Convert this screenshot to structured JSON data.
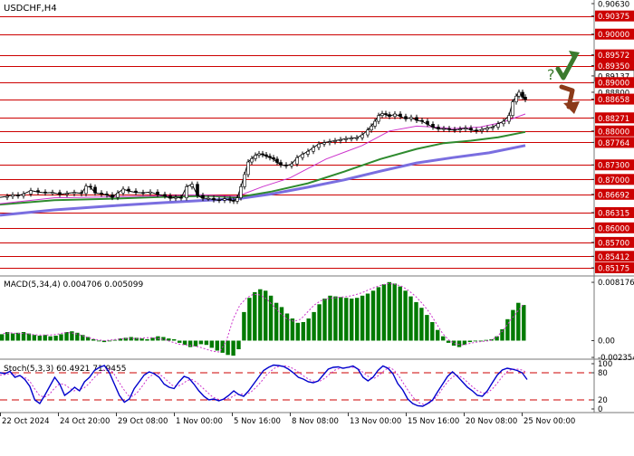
{
  "chart_data": [
    {
      "type": "candlestick",
      "title": "USDCHF,H4",
      "y_axis_labels": [
        "0.90630",
        "0.90375",
        "0.90000",
        "0.89572",
        "0.89350",
        "0.89137",
        "0.89000",
        "0.88800",
        "0.88658",
        "0.88271",
        "0.88000",
        "0.87764",
        "0.87300",
        "0.87000",
        "0.86692",
        "0.86315",
        "0.86000",
        "0.85700",
        "0.85412",
        "0.85175"
      ],
      "highlighted_levels": [
        0.90375,
        0.9,
        0.89572,
        0.8935,
        0.89,
        0.88658,
        0.88271,
        0.88,
        0.87764,
        0.873,
        0.87,
        0.86692,
        0.86315,
        0.86,
        0.857,
        0.85412,
        0.85175
      ],
      "current_price": 0.89137,
      "ylim": [
        0.851,
        0.9063
      ],
      "close_path": [
        [
          0,
          0.8663
        ],
        [
          8,
          0.8665
        ],
        [
          14,
          0.8668
        ],
        [
          20,
          0.8666
        ],
        [
          26,
          0.867
        ],
        [
          34,
          0.8677
        ],
        [
          42,
          0.8674
        ],
        [
          50,
          0.8672
        ],
        [
          58,
          0.8673
        ],
        [
          66,
          0.8669
        ],
        [
          74,
          0.8671
        ],
        [
          82,
          0.8673
        ],
        [
          90,
          0.8671
        ],
        [
          95,
          0.8686
        ],
        [
          100,
          0.8684
        ],
        [
          105,
          0.8672
        ],
        [
          112,
          0.867
        ],
        [
          118,
          0.8668
        ],
        [
          124,
          0.8663
        ],
        [
          130,
          0.8672
        ],
        [
          136,
          0.868
        ],
        [
          142,
          0.8676
        ],
        [
          150,
          0.8673
        ],
        [
          158,
          0.8672
        ],
        [
          166,
          0.8674
        ],
        [
          174,
          0.8669
        ],
        [
          182,
          0.8666
        ],
        [
          188,
          0.8661
        ],
        [
          194,
          0.8663
        ],
        [
          200,
          0.8662
        ],
        [
          206,
          0.8685
        ],
        [
          212,
          0.869
        ],
        [
          218,
          0.8667
        ],
        [
          224,
          0.8661
        ],
        [
          230,
          0.8661
        ],
        [
          236,
          0.8658
        ],
        [
          242,
          0.8657
        ],
        [
          248,
          0.866
        ],
        [
          254,
          0.8657
        ],
        [
          258,
          0.8655
        ],
        [
          262,
          0.8662
        ],
        [
          266,
          0.8685
        ],
        [
          270,
          0.871
        ],
        [
          274,
          0.8736
        ],
        [
          278,
          0.8743
        ],
        [
          282,
          0.875
        ],
        [
          286,
          0.8753
        ],
        [
          290,
          0.8751
        ],
        [
          294,
          0.8748
        ],
        [
          298,
          0.8745
        ],
        [
          302,
          0.8742
        ],
        [
          306,
          0.8735
        ],
        [
          310,
          0.873
        ],
        [
          316,
          0.8728
        ],
        [
          322,
          0.8732
        ],
        [
          328,
          0.8745
        ],
        [
          334,
          0.8752
        ],
        [
          340,
          0.8758
        ],
        [
          346,
          0.8766
        ],
        [
          352,
          0.8773
        ],
        [
          358,
          0.8776
        ],
        [
          364,
          0.8778
        ],
        [
          370,
          0.878
        ],
        [
          376,
          0.8782
        ],
        [
          382,
          0.8784
        ],
        [
          388,
          0.8785
        ],
        [
          394,
          0.8786
        ],
        [
          400,
          0.8792
        ],
        [
          406,
          0.8802
        ],
        [
          410,
          0.881
        ],
        [
          414,
          0.882
        ],
        [
          418,
          0.8832
        ],
        [
          422,
          0.8836
        ],
        [
          426,
          0.8834
        ],
        [
          430,
          0.883
        ],
        [
          436,
          0.8835
        ],
        [
          442,
          0.883
        ],
        [
          448,
          0.8825
        ],
        [
          454,
          0.8828
        ],
        [
          460,
          0.8822
        ],
        [
          466,
          0.882
        ],
        [
          472,
          0.8814
        ],
        [
          478,
          0.8808
        ],
        [
          484,
          0.8804
        ],
        [
          490,
          0.8805
        ],
        [
          496,
          0.8803
        ],
        [
          502,
          0.8802
        ],
        [
          508,
          0.8804
        ],
        [
          514,
          0.8806
        ],
        [
          520,
          0.8802
        ],
        [
          526,
          0.88
        ],
        [
          532,
          0.8803
        ],
        [
          538,
          0.8806
        ],
        [
          544,
          0.8808
        ],
        [
          550,
          0.8815
        ],
        [
          556,
          0.882
        ],
        [
          562,
          0.8832
        ],
        [
          566,
          0.886
        ],
        [
          570,
          0.8872
        ],
        [
          573,
          0.888
        ],
        [
          577,
          0.887
        ],
        [
          580,
          0.8865
        ]
      ],
      "ma_fast": [
        [
          0,
          0.865
        ],
        [
          60,
          0.8662
        ],
        [
          120,
          0.8664
        ],
        [
          180,
          0.8666
        ],
        [
          220,
          0.8668
        ],
        [
          262,
          0.8665
        ],
        [
          290,
          0.8685
        ],
        [
          320,
          0.8703
        ],
        [
          360,
          0.8742
        ],
        [
          400,
          0.877
        ],
        [
          430,
          0.88
        ],
        [
          460,
          0.881
        ],
        [
          480,
          0.8808
        ],
        [
          500,
          0.8805
        ],
        [
          530,
          0.8808
        ],
        [
          555,
          0.8818
        ],
        [
          580,
          0.8835
        ]
      ],
      "ma_mid": [
        [
          0,
          0.8648
        ],
        [
          60,
          0.8657
        ],
        [
          120,
          0.866
        ],
        [
          180,
          0.8664
        ],
        [
          230,
          0.8666
        ],
        [
          262,
          0.8663
        ],
        [
          300,
          0.8675
        ],
        [
          340,
          0.8692
        ],
        [
          380,
          0.8716
        ],
        [
          420,
          0.8742
        ],
        [
          460,
          0.8763
        ],
        [
          490,
          0.8775
        ],
        [
          520,
          0.878
        ],
        [
          550,
          0.8787
        ],
        [
          580,
          0.8798
        ]
      ],
      "ma_slow": [
        [
          0,
          0.8626
        ],
        [
          60,
          0.8637
        ],
        [
          120,
          0.8645
        ],
        [
          180,
          0.8652
        ],
        [
          230,
          0.8657
        ],
        [
          262,
          0.866
        ],
        [
          300,
          0.867
        ],
        [
          340,
          0.8684
        ],
        [
          380,
          0.8699
        ],
        [
          420,
          0.8717
        ],
        [
          460,
          0.8734
        ],
        [
          500,
          0.8745
        ],
        [
          540,
          0.8755
        ],
        [
          580,
          0.877
        ]
      ],
      "forecast_annotation": "?",
      "series": [
        {
          "name": "USDCHF",
          "color": "#000000"
        },
        {
          "name": "",
          "color": "#cc33cc"
        },
        {
          "name": "",
          "color": "#2e8b2e"
        },
        {
          "name": "",
          "color": "#7a6ee0"
        }
      ]
    },
    {
      "type": "bar",
      "title": "MACD(5,34,4) 0.004706 0.005099",
      "y_axis_labels": [
        "0.008176",
        "0.00",
        "-0.002354"
      ],
      "ylim": [
        -0.00235,
        0.00818
      ],
      "histogram": [
        0.0009,
        0.0012,
        0.001,
        0.0011,
        0.0012,
        0.001,
        0.0008,
        0.0007,
        0.0008,
        0.0006,
        0.0007,
        0.0009,
        0.0012,
        0.0013,
        0.0011,
        0.0008,
        0.0005,
        0.0002,
        -0.0001,
        -0.0002,
        -0.0001,
        0.0001,
        0.0003,
        0.0004,
        0.0005,
        0.0004,
        0.0003,
        0.0002,
        0.0004,
        0.0006,
        0.0005,
        0.0003,
        0.0002,
        -0.0003,
        -0.0006,
        -0.0009,
        -0.0008,
        -0.0005,
        -0.0006,
        -0.001,
        -0.0014,
        -0.0017,
        -0.002,
        -0.0021,
        -0.0012,
        0.004,
        0.006,
        0.0068,
        0.0072,
        0.007,
        0.0063,
        0.0053,
        0.0047,
        0.0038,
        0.0031,
        0.0025,
        0.0026,
        0.0031,
        0.004,
        0.0051,
        0.0059,
        0.0063,
        0.0062,
        0.0061,
        0.006,
        0.0059,
        0.006,
        0.0063,
        0.0066,
        0.007,
        0.0075,
        0.0079,
        0.0082,
        0.008,
        0.0076,
        0.007,
        0.0062,
        0.0054,
        0.0046,
        0.0036,
        0.0026,
        0.0015,
        0.0006,
        -0.0003,
        -0.0007,
        -0.0009,
        -0.0006,
        -0.0002,
        -0.0001,
        -0.0001,
        0.0001,
        0.0002,
        0.0006,
        0.0016,
        0.003,
        0.0043,
        0.0053,
        0.005
      ],
      "signal": [
        0.001,
        0.0011,
        0.001,
        0.001,
        0.0009,
        0.0008,
        0.0008,
        0.0008,
        0.0009,
        0.0011,
        0.0011,
        0.0009,
        0.0006,
        0.0003,
        0.0001,
        0.0,
        0.0001,
        0.0002,
        0.0003,
        0.0003,
        0.0003,
        0.0004,
        0.0004,
        0.0003,
        0.0001,
        -0.0002,
        -0.0005,
        -0.0006,
        -0.0007,
        -0.0009,
        -0.0012,
        -0.0015,
        -0.0016,
        0.0,
        0.003,
        0.005,
        0.006,
        0.0065,
        0.0064,
        0.0058,
        0.0048,
        0.0038,
        0.003,
        0.0027,
        0.003,
        0.004,
        0.005,
        0.0056,
        0.0059,
        0.006,
        0.0061,
        0.0062,
        0.0064,
        0.0067,
        0.0071,
        0.0075,
        0.0078,
        0.008,
        0.0079,
        0.0076,
        0.007,
        0.0062,
        0.0052,
        0.004,
        0.0025,
        0.001,
        0.0,
        -0.0005,
        -0.0006,
        -0.0004,
        -0.0002,
        -0.0001,
        0.0,
        0.0005,
        0.0015,
        0.0028,
        0.004,
        0.0051
      ]
    },
    {
      "type": "line",
      "title": "Stoch(5,3,3) 60.4921 71.9455",
      "y_axis_labels": [
        "100",
        "80",
        "20",
        "0"
      ],
      "levels": [
        80,
        20
      ],
      "ylim": [
        0,
        100
      ],
      "main": [
        80,
        78,
        83,
        70,
        74,
        65,
        50,
        20,
        12,
        30,
        50,
        70,
        55,
        30,
        38,
        48,
        40,
        60,
        70,
        85,
        92,
        96,
        80,
        55,
        30,
        15,
        22,
        45,
        60,
        75,
        82,
        78,
        70,
        55,
        48,
        45,
        60,
        72,
        68,
        55,
        40,
        28,
        20,
        22,
        18,
        22,
        30,
        40,
        32,
        28,
        40,
        55,
        70,
        85,
        92,
        97,
        96,
        94,
        88,
        80,
        70,
        66,
        60,
        58,
        62,
        75,
        88,
        92,
        93,
        90,
        92,
        95,
        88,
        70,
        62,
        70,
        85,
        95,
        90,
        78,
        56,
        42,
        22,
        12,
        7,
        6,
        12,
        20,
        38,
        55,
        72,
        82,
        72,
        60,
        48,
        40,
        30,
        28,
        40,
        58,
        75,
        86,
        90,
        88,
        85,
        80,
        65
      ],
      "signal": [
        75,
        76,
        78,
        76,
        73,
        70,
        62,
        45,
        30,
        26,
        32,
        45,
        55,
        55,
        47,
        40,
        43,
        46,
        55,
        68,
        78,
        86,
        90,
        80,
        62,
        45,
        30,
        28,
        38,
        52,
        68,
        76,
        78,
        72,
        62,
        52,
        50,
        55,
        63,
        65,
        58,
        48,
        38,
        28,
        22,
        20,
        22,
        26,
        32,
        33,
        32,
        38,
        48,
        60,
        74,
        84,
        92,
        95,
        95,
        92,
        86,
        78,
        70,
        64,
        60,
        62,
        68,
        78,
        86,
        90,
        91,
        92,
        92,
        87,
        78,
        70,
        68,
        75,
        85,
        92,
        86,
        72,
        55,
        38,
        24,
        14,
        10,
        12,
        20,
        32,
        48,
        62,
        72,
        74,
        68,
        58,
        48,
        40,
        35,
        36,
        45,
        58,
        72,
        83,
        88,
        88,
        86,
        80
      ]
    }
  ],
  "x_axis_labels": [
    "22 Oct 2024",
    "24 Oct 20:00",
    "29 Oct 08:00",
    "1 Nov 00:00",
    "5 Nov 16:00",
    "8 Nov 08:00",
    "13 Nov 00:00",
    "15 Nov 16:00",
    "20 Nov 08:00",
    "25 Nov 00:00"
  ],
  "colors": {
    "level_line": "#cc0000",
    "price_tag_bg": "#cc0000",
    "current_tag_bg": "#ffffff",
    "candles": "#000000",
    "macd_bars": "#007a00",
    "macd_signal": "#cc33cc",
    "stoch_main": "#0000cc",
    "stoch_signal": "#cc33cc",
    "arrow_up": "#3c7a2e",
    "arrow_down": "#8b3a1a"
  }
}
